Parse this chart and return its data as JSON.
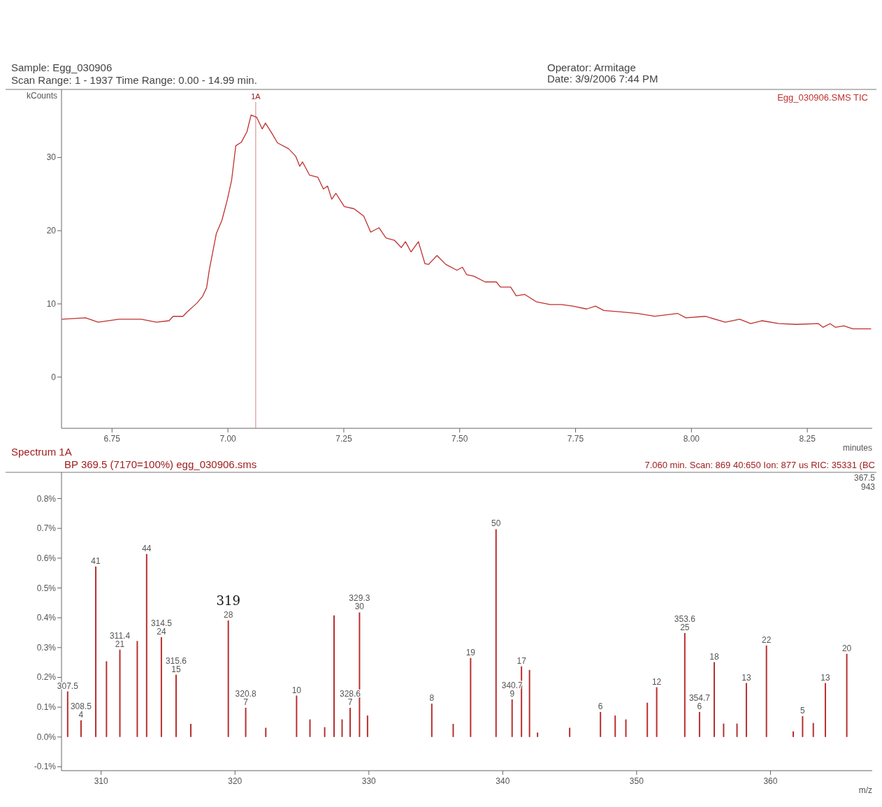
{
  "chart_data": [
    {
      "type": "line",
      "title": "Sample: Egg_030906",
      "subtitle": "Scan Range: 1 - 1937 Time Range: 0.00 - 14.99 min.",
      "xlabel": "minutes",
      "ylabel": "kCounts",
      "annotations": [
        "Operator: Armitage",
        "Date: 3/9/2006 7:44 PM"
      ],
      "legend": "top right",
      "xlim": [
        6.641,
        8.39
      ],
      "ylim": [
        -7,
        39.3
      ],
      "xticks": [
        {
          "value": 6.75,
          "label": "6.75"
        },
        {
          "value": 7,
          "label": "7.00"
        },
        {
          "value": 7.25,
          "label": "7.25"
        },
        {
          "value": 7.5,
          "label": "7.50"
        },
        {
          "value": 7.75,
          "label": "7.75"
        },
        {
          "value": 8,
          "label": "8.00"
        },
        {
          "value": 8.25,
          "label": "8.25"
        }
      ],
      "yticks": [
        0,
        10,
        20,
        30
      ],
      "ref_lines": [
        {
          "axis": "x",
          "value": 7.06,
          "label": "1A",
          "color": "#d08080"
        }
      ],
      "series": [
        {
          "name": "Egg_030906.SMS TIC",
          "color": "#c03030",
          "x": [
            6.642,
            6.693,
            6.72,
            6.765,
            6.813,
            6.846,
            6.873,
            6.882,
            6.903,
            6.912,
            6.933,
            6.945,
            6.954,
            6.96,
            6.975,
            6.987,
            6.999,
            7.008,
            7.017,
            7.029,
            7.041,
            7.05,
            7.062,
            7.074,
            7.081,
            7.095,
            7.107,
            7.131,
            7.146,
            7.155,
            7.161,
            7.176,
            7.194,
            7.206,
            7.215,
            7.224,
            7.233,
            7.251,
            7.272,
            7.293,
            7.308,
            7.326,
            7.341,
            7.359,
            7.374,
            7.383,
            7.395,
            7.411,
            7.425,
            7.433,
            7.451,
            7.47,
            7.494,
            7.506,
            7.515,
            7.53,
            7.555,
            7.579,
            7.588,
            7.61,
            7.622,
            7.64,
            7.665,
            7.695,
            7.72,
            7.744,
            7.774,
            7.793,
            7.811,
            7.848,
            7.884,
            7.921,
            7.97,
            7.988,
            8.03,
            8.073,
            8.104,
            8.128,
            8.152,
            8.189,
            8.226,
            8.274,
            8.284,
            8.299,
            8.311,
            8.329,
            8.348,
            8.387
          ],
          "values": [
            7.9,
            8.1,
            7.5,
            7.9,
            7.9,
            7.5,
            7.7,
            8.3,
            8.3,
            8.9,
            10.1,
            11.0,
            12.2,
            14.7,
            19.6,
            21.4,
            24.3,
            26.9,
            31.6,
            32.1,
            33.5,
            35.8,
            35.5,
            33.9,
            34.7,
            33.3,
            32.0,
            31.2,
            30.2,
            28.8,
            29.4,
            27.6,
            27.3,
            25.7,
            26.1,
            24.3,
            25.1,
            23.3,
            23.0,
            22.0,
            19.8,
            20.4,
            19.0,
            18.7,
            17.7,
            18.5,
            17.1,
            18.5,
            15.5,
            15.4,
            16.6,
            15.4,
            14.6,
            15.0,
            14.0,
            13.8,
            13.0,
            13.0,
            12.3,
            12.3,
            11.1,
            11.3,
            10.3,
            9.9,
            9.9,
            9.7,
            9.3,
            9.7,
            9.1,
            8.9,
            8.7,
            8.3,
            8.7,
            8.1,
            8.3,
            7.5,
            7.9,
            7.3,
            7.7,
            7.3,
            7.2,
            7.3,
            6.8,
            7.3,
            6.8,
            7.0,
            6.6,
            6.6
          ]
        }
      ]
    },
    {
      "type": "bar",
      "title": "Spectrum 1A",
      "subtitle": "BP 369.5 (7170=100%) egg_030906.sms",
      "xlabel": "m/z",
      "annotations": [
        "7.060 min. Scan: 869 40:650 Ion: 877 us RIC: 35331 (BC",
        {
          "text": "319",
          "x": 319.5,
          "y": 0.391
        },
        "367.5",
        "943",
        {
          "text": "307.5",
          "x": 307.5,
          "y": 0.153
        },
        {
          "text": "308.5\n4",
          "x": 308.5,
          "y": 0.056
        },
        {
          "text": "41",
          "x": 309.6,
          "y": 0.572
        },
        {
          "text": "311.4\n21",
          "x": 311.4,
          "y": 0.293
        },
        {
          "text": "44",
          "x": 313.4,
          "y": 0.614
        },
        {
          "text": "314.5\n24",
          "x": 314.5,
          "y": 0.335
        },
        {
          "text": "315.6\n15",
          "x": 315.6,
          "y": 0.209
        },
        {
          "text": "28",
          "x": 319.5,
          "y": 0.391
        },
        {
          "text": "320.8\n7",
          "x": 320.8,
          "y": 0.098
        },
        {
          "text": "10",
          "x": 324.6,
          "y": 0.139
        },
        {
          "text": "328.6\n7",
          "x": 328.6,
          "y": 0.098
        },
        {
          "text": "329.3\n30",
          "x": 329.3,
          "y": 0.418
        },
        {
          "text": "8",
          "x": 334.7,
          "y": 0.112
        },
        {
          "text": "19",
          "x": 337.6,
          "y": 0.265
        },
        {
          "text": "50",
          "x": 339.5,
          "y": 0.697
        },
        {
          "text": "340.7\n9",
          "x": 340.7,
          "y": 0.126
        },
        {
          "text": "17",
          "x": 341.4,
          "y": 0.237
        },
        {
          "text": "6",
          "x": 347.3,
          "y": 0.084
        },
        {
          "text": "12",
          "x": 351.5,
          "y": 0.167
        },
        {
          "text": "353.6\n25",
          "x": 353.6,
          "y": 0.349
        },
        {
          "text": "354.7\n6",
          "x": 354.7,
          "y": 0.084
        },
        {
          "text": "18",
          "x": 355.8,
          "y": 0.251
        },
        {
          "text": "13",
          "x": 358.2,
          "y": 0.181
        },
        {
          "text": "22",
          "x": 359.7,
          "y": 0.307
        },
        {
          "text": "5",
          "x": 362.4,
          "y": 0.07
        },
        {
          "text": "13",
          "x": 364.1,
          "y": 0.181
        },
        {
          "text": "20",
          "x": 365.7,
          "y": 0.279
        }
      ],
      "xlim": [
        307.04,
        367.6
      ],
      "ylim": [
        -0.113,
        0.888
      ],
      "xticks": [
        310,
        320,
        330,
        340,
        350,
        360
      ],
      "yticks": [
        {
          "value": -0.1,
          "label": "-0.1%"
        },
        {
          "value": 0,
          "label": "0.0%"
        },
        {
          "value": 0.1,
          "label": "0.1%"
        },
        {
          "value": 0.2,
          "label": "0.2%"
        },
        {
          "value": 0.3,
          "label": "0.3%"
        },
        {
          "value": 0.4,
          "label": "0.4%"
        },
        {
          "value": 0.5,
          "label": "0.5%"
        },
        {
          "value": 0.6,
          "label": "0.6%"
        },
        {
          "value": 0.7,
          "label": "0.7%"
        },
        {
          "value": 0.8,
          "label": "0.8%"
        }
      ],
      "series": [
        {
          "color": "#b83030",
          "x": [
            307.5,
            308.5,
            309.6,
            310.4,
            311.4,
            312.7,
            313.4,
            314.5,
            315.6,
            316.7,
            319.5,
            320.8,
            322.3,
            324.6,
            325.6,
            326.7,
            327.4,
            328.0,
            328.6,
            329.3,
            329.9,
            334.7,
            336.3,
            337.6,
            339.5,
            340.7,
            341.4,
            342.0,
            342.6,
            345.0,
            347.3,
            348.4,
            349.2,
            350.8,
            351.5,
            353.6,
            354.7,
            355.8,
            356.5,
            357.5,
            358.2,
            359.7,
            361.7,
            362.4,
            363.2,
            364.1,
            365.7
          ],
          "values": [
            0.153,
            0.056,
            0.572,
            0.254,
            0.293,
            0.322,
            0.614,
            0.335,
            0.209,
            0.044,
            0.391,
            0.098,
            0.031,
            0.139,
            0.059,
            0.033,
            0.408,
            0.059,
            0.098,
            0.418,
            0.072,
            0.112,
            0.044,
            0.265,
            0.697,
            0.126,
            0.237,
            0.225,
            0.015,
            0.031,
            0.084,
            0.072,
            0.059,
            0.115,
            0.167,
            0.349,
            0.084,
            0.251,
            0.045,
            0.045,
            0.181,
            0.307,
            0.019,
            0.07,
            0.047,
            0.181,
            0.279
          ]
        }
      ]
    }
  ]
}
